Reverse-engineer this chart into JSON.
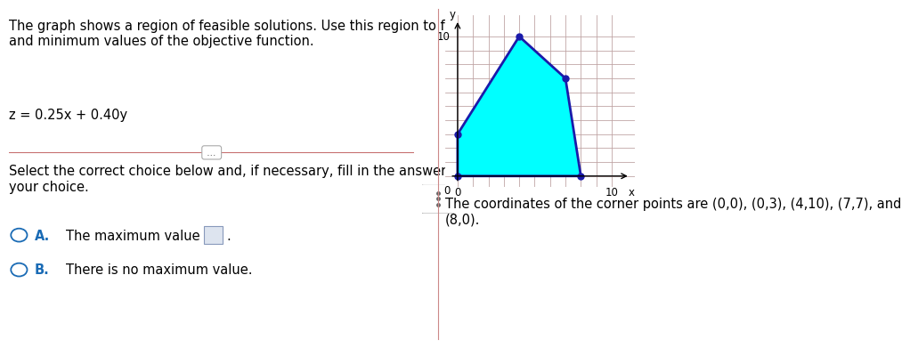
{
  "title_text": "The graph shows a region of feasible solutions. Use this region to find maximum\nand minimum values of the objective function.",
  "objective_function": "z = 0.25x + 0.40y",
  "corner_points": [
    [
      0,
      0
    ],
    [
      0,
      3
    ],
    [
      4,
      10
    ],
    [
      7,
      7
    ],
    [
      8,
      0
    ]
  ],
  "polygon_fill_color": "#00FFFF",
  "polygon_edge_color": "#1a1aaa",
  "polygon_edge_width": 2.0,
  "dot_color": "#1a1aaa",
  "dot_size": 5,
  "grid_color": "#C0A0A0",
  "grid_gray_color": "#cccccc",
  "axis_color": "#000000",
  "xlabel": "x",
  "ylabel": "y",
  "xlim": [
    -0.8,
    11.5
  ],
  "ylim": [
    -0.8,
    11.5
  ],
  "graph_xtick_10": "10",
  "graph_ytick_10": "10",
  "choice_text_select": "Select the correct choice below and, if necessary, fill in the answer box to complete\nyour choice.",
  "choice_A_label": "A.",
  "choice_A_text": "The maximum value is",
  "choice_B_label": "B.",
  "choice_B_text": "There is no maximum value.",
  "corner_text": "The coordinates of the corner points are (0,0), (0,3), (4,10), (7,7), and\n(8,0).",
  "separator_color": "#C87070",
  "fig_bg": "#ffffff",
  "text_color": "#000000",
  "choice_label_color": "#1a6bb5",
  "circle_color": "#1a6bb5",
  "answer_box_color": "#dde4ef",
  "font_size_title": 10.5,
  "font_size_body": 10.5,
  "font_size_formula": 10.5,
  "font_size_choice": 10.5,
  "font_size_graph": 8.5,
  "divider_color": "#cc8888",
  "divider_x": 0.497
}
